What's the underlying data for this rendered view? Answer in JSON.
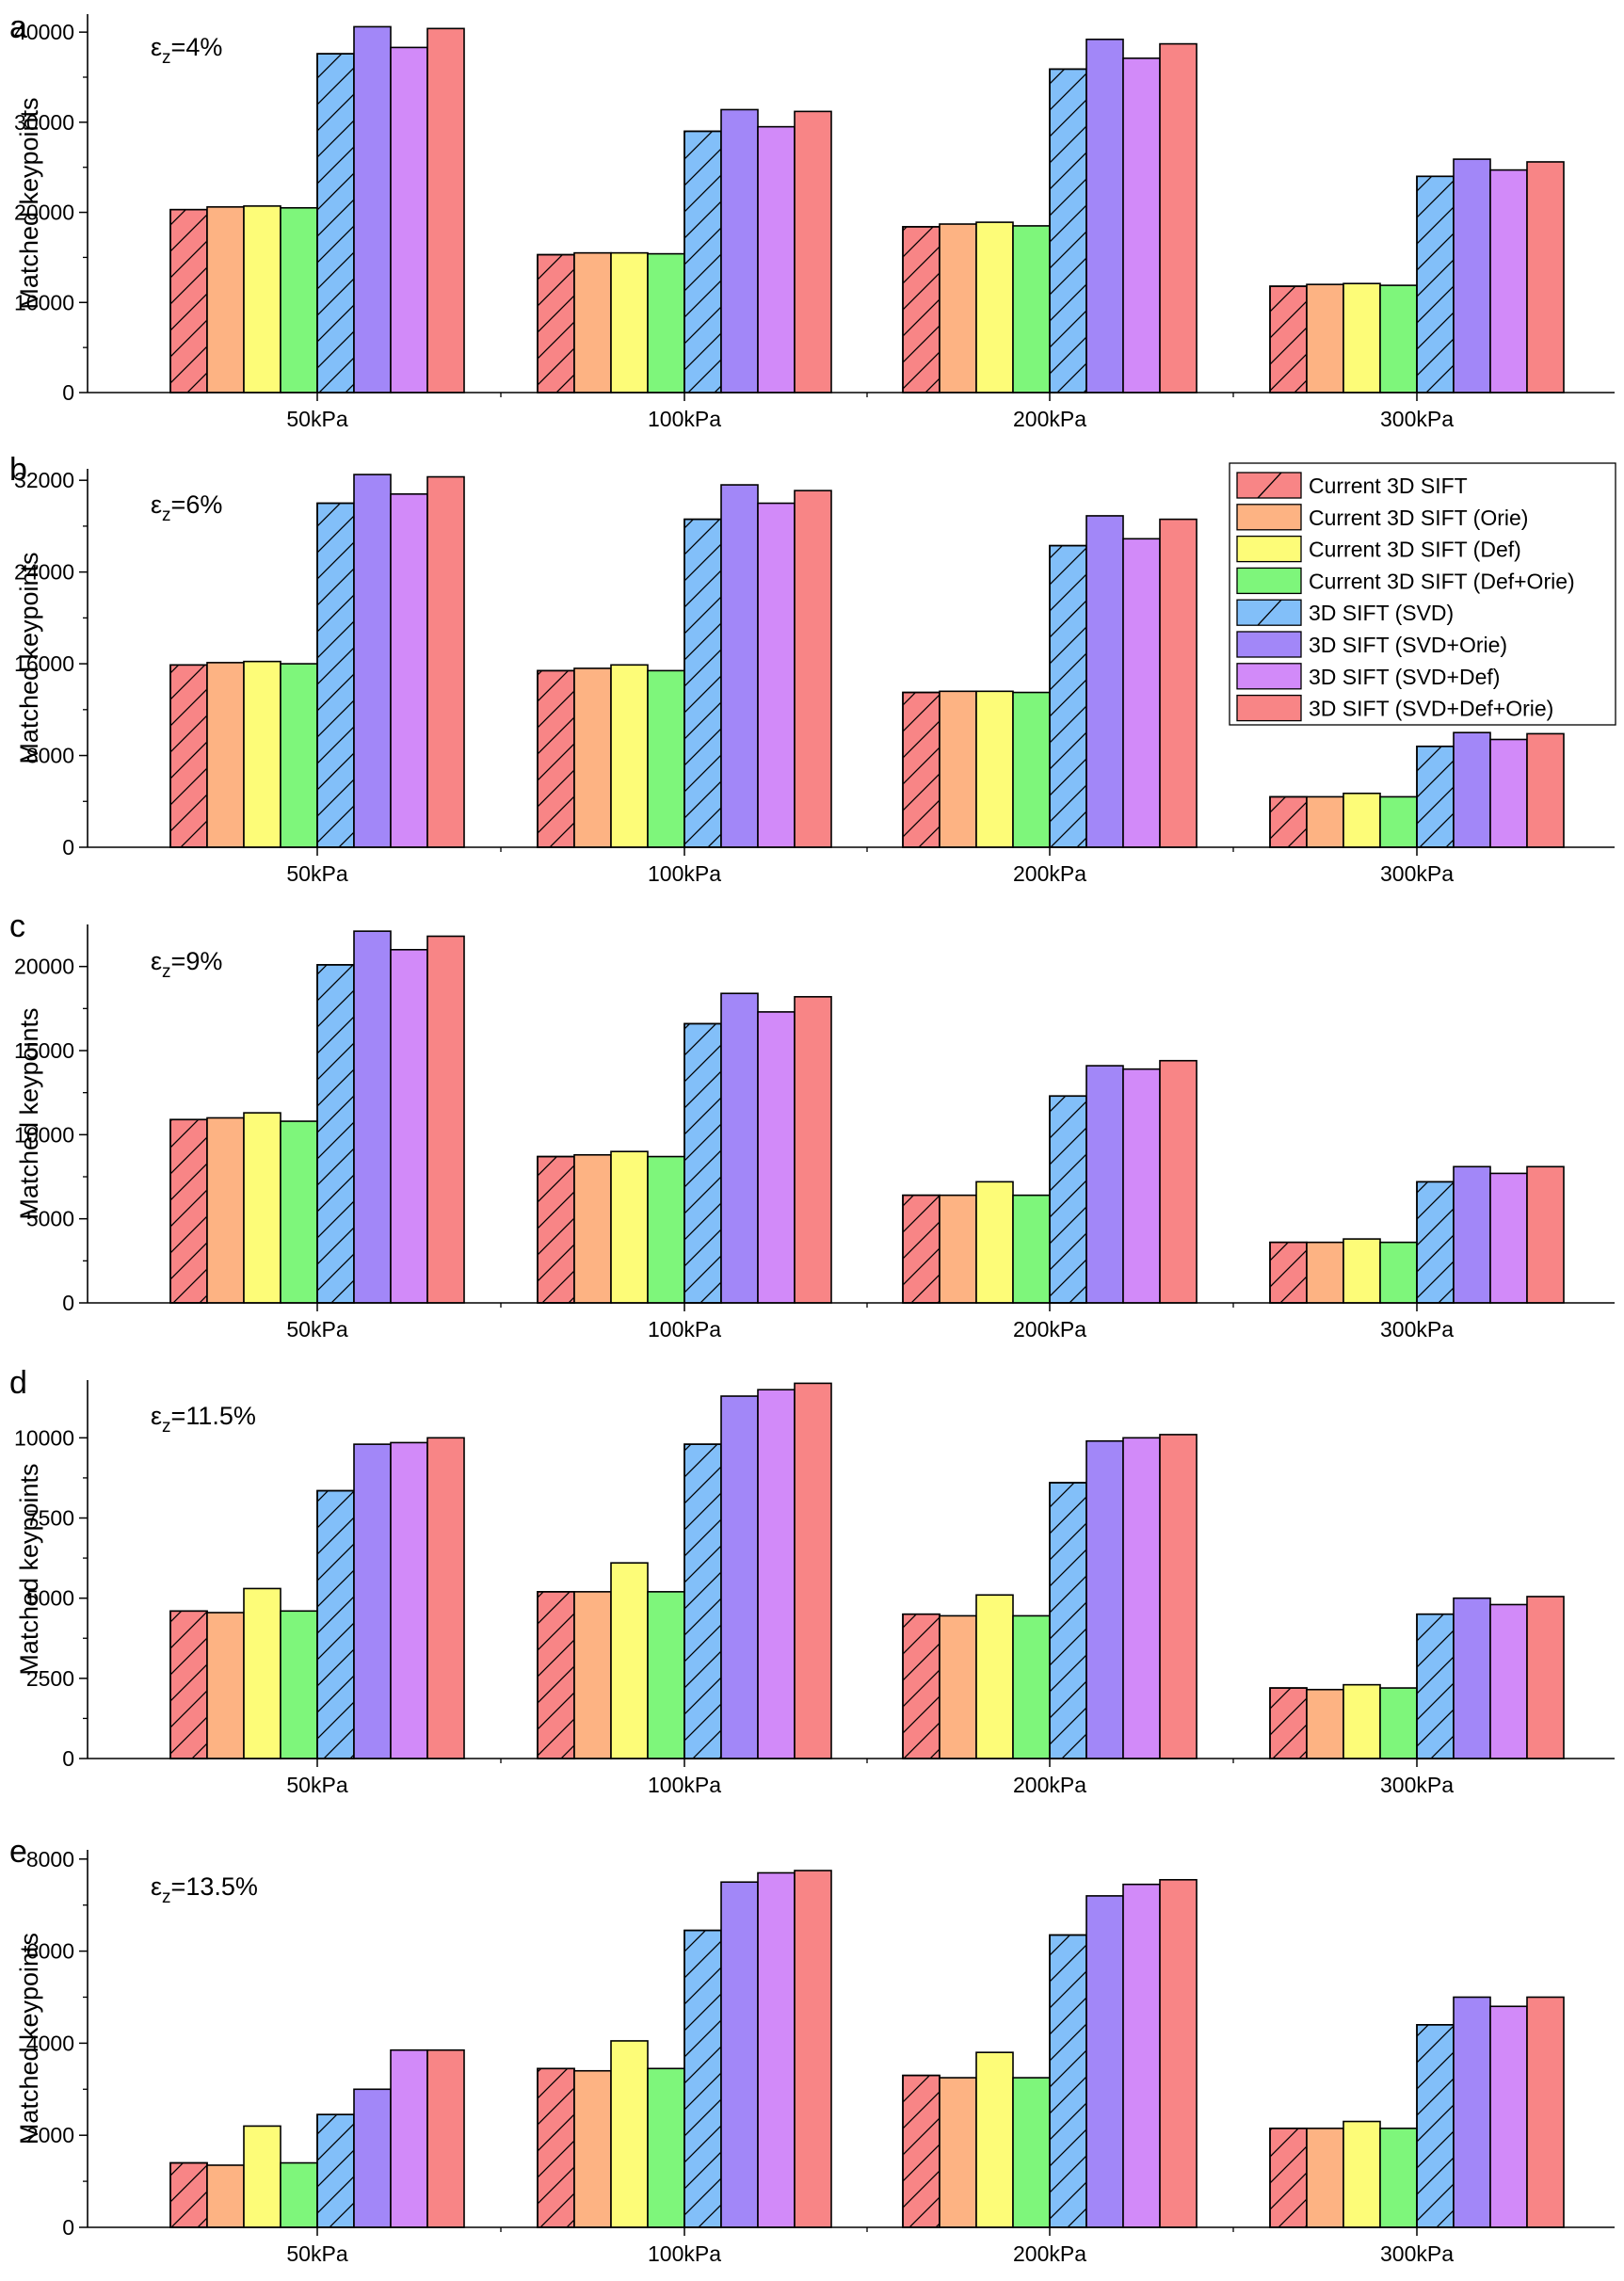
{
  "figure": {
    "series_styles": [
      {
        "name": "Current 3D SIFT",
        "color": "#f88586",
        "hatched": true
      },
      {
        "name": "Current 3D SIFT (Orie)",
        "color": "#fdb383",
        "hatched": false
      },
      {
        "name": "Current 3D SIFT (Def)",
        "color": "#fdfc78",
        "hatched": false
      },
      {
        "name": "Current 3D SIFT (Def+Orie)",
        "color": "#7ef67b",
        "hatched": false
      },
      {
        "name": "3D SIFT (SVD)",
        "color": "#82bff9",
        "hatched": true
      },
      {
        "name": "3D SIFT (SVD+Orie)",
        "color": "#a287f8",
        "hatched": false
      },
      {
        "name": "3D SIFT (SVD+Def)",
        "color": "#d28af9",
        "hatched": false
      },
      {
        "name": "3D SIFT (SVD+Def+Orie)",
        "color": "#f88586",
        "hatched": false
      }
    ],
    "legend_placement": "top-right of panel b"
  },
  "chart_data": [
    {
      "type": "bar",
      "panel_label": "a",
      "annotation": "εz=4%",
      "annotation_main": "ε",
      "annotation_sub": "z",
      "annotation_rest": "=4%",
      "ylabel": "Matched keypoints",
      "xlabel": "",
      "categories": [
        "50kPa",
        "100kPa",
        "200kPa",
        "300kPa"
      ],
      "ylim": [
        0,
        42000
      ],
      "yticks": [
        0,
        10000,
        20000,
        30000,
        40000
      ],
      "ytick_labels": [
        "0",
        "10000",
        "20000",
        "30000",
        "40000"
      ],
      "series": [
        {
          "name": "Current 3D SIFT",
          "values": [
            20300,
            15300,
            18400,
            11800
          ]
        },
        {
          "name": "Current 3D SIFT (Orie)",
          "values": [
            20600,
            15500,
            18700,
            12000
          ]
        },
        {
          "name": "Current 3D SIFT (Def)",
          "values": [
            20700,
            15500,
            18900,
            12100
          ]
        },
        {
          "name": "Current 3D SIFT (Def+Orie)",
          "values": [
            20500,
            15400,
            18500,
            11900
          ]
        },
        {
          "name": "3D SIFT (SVD)",
          "values": [
            37600,
            29000,
            35900,
            24000
          ]
        },
        {
          "name": "3D SIFT (SVD+Orie)",
          "values": [
            40600,
            31400,
            39200,
            25900
          ]
        },
        {
          "name": "3D SIFT (SVD+Def)",
          "values": [
            38300,
            29500,
            37100,
            24700
          ]
        },
        {
          "name": "3D SIFT (SVD+Def+Orie)",
          "values": [
            40400,
            31200,
            38700,
            25600
          ]
        }
      ]
    },
    {
      "type": "bar",
      "panel_label": "b",
      "annotation": "εz=6%",
      "annotation_main": "ε",
      "annotation_sub": "z",
      "annotation_rest": "=6%",
      "ylabel": "Matched keypoints",
      "xlabel": "",
      "categories": [
        "50kPa",
        "100kPa",
        "200kPa",
        "300kPa"
      ],
      "ylim": [
        0,
        33000
      ],
      "yticks": [
        0,
        8000,
        16000,
        24000,
        32000
      ],
      "ytick_labels": [
        "0",
        "8000",
        "16000",
        "24000",
        "32000"
      ],
      "legend": true,
      "series": [
        {
          "name": "Current 3D SIFT",
          "values": [
            15900,
            15400,
            13500,
            4400
          ]
        },
        {
          "name": "Current 3D SIFT (Orie)",
          "values": [
            16100,
            15600,
            13600,
            4400
          ]
        },
        {
          "name": "Current 3D SIFT (Def)",
          "values": [
            16200,
            15900,
            13600,
            4700
          ]
        },
        {
          "name": "Current 3D SIFT (Def+Orie)",
          "values": [
            16000,
            15400,
            13500,
            4400
          ]
        },
        {
          "name": "3D SIFT (SVD)",
          "values": [
            30000,
            28600,
            26300,
            8800
          ]
        },
        {
          "name": "3D SIFT (SVD+Orie)",
          "values": [
            32500,
            31600,
            28900,
            10000
          ]
        },
        {
          "name": "3D SIFT (SVD+Def)",
          "values": [
            30800,
            30000,
            26900,
            9400
          ]
        },
        {
          "name": "3D SIFT (SVD+Def+Orie)",
          "values": [
            32300,
            31100,
            28600,
            9900
          ]
        }
      ],
      "legend_entries": [
        "Current 3D SIFT",
        "Current 3D SIFT (Orie)",
        "Current 3D SIFT (Def)",
        "Current 3D SIFT (Def+Orie)",
        "3D SIFT (SVD)",
        "3D SIFT (SVD+Orie)",
        "3D SIFT (SVD+Def)",
        "3D SIFT (SVD+Def+Orie)"
      ]
    },
    {
      "type": "bar",
      "panel_label": "c",
      "annotation": "εz=9%",
      "annotation_main": "ε",
      "annotation_sub": "z",
      "annotation_rest": "=9%",
      "ylabel": "Matched keypoints",
      "xlabel": "",
      "categories": [
        "50kPa",
        "100kPa",
        "200kPa",
        "300kPa"
      ],
      "ylim": [
        0,
        22500
      ],
      "yticks": [
        0,
        5000,
        10000,
        15000,
        20000
      ],
      "ytick_labels": [
        "0",
        "5000",
        "10000",
        "15000",
        "20000"
      ],
      "series": [
        {
          "name": "Current 3D SIFT",
          "values": [
            10900,
            8700,
            6400,
            3600
          ]
        },
        {
          "name": "Current 3D SIFT (Orie)",
          "values": [
            11000,
            8800,
            6400,
            3600
          ]
        },
        {
          "name": "Current 3D SIFT (Def)",
          "values": [
            11300,
            9000,
            7200,
            3800
          ]
        },
        {
          "name": "Current 3D SIFT (Def+Orie)",
          "values": [
            10800,
            8700,
            6400,
            3600
          ]
        },
        {
          "name": "3D SIFT (SVD)",
          "values": [
            20100,
            16600,
            12300,
            7200
          ]
        },
        {
          "name": "3D SIFT (SVD+Orie)",
          "values": [
            22100,
            18400,
            14100,
            8100
          ]
        },
        {
          "name": "3D SIFT (SVD+Def)",
          "values": [
            21000,
            17300,
            13900,
            7700
          ]
        },
        {
          "name": "3D SIFT (SVD+Def+Orie)",
          "values": [
            21800,
            18200,
            14400,
            8100
          ]
        }
      ]
    },
    {
      "type": "bar",
      "panel_label": "d",
      "annotation": "εz=11.5%",
      "annotation_main": "ε",
      "annotation_sub": "z",
      "annotation_rest": "=11.5%",
      "ylabel": "Matched keypoints",
      "xlabel": "",
      "categories": [
        "50kPa",
        "100kPa",
        "200kPa",
        "300kPa"
      ],
      "ylim": [
        0,
        11800
      ],
      "yticks": [
        0,
        2500,
        5000,
        7500,
        10000
      ],
      "ytick_labels": [
        "0",
        "2500",
        "5000",
        "7500",
        "10000"
      ],
      "series": [
        {
          "name": "Current 3D SIFT",
          "values": [
            4600,
            5200,
            4500,
            2200
          ]
        },
        {
          "name": "Current 3D SIFT (Orie)",
          "values": [
            4550,
            5200,
            4450,
            2150
          ]
        },
        {
          "name": "Current 3D SIFT (Def)",
          "values": [
            5300,
            6100,
            5100,
            2300
          ]
        },
        {
          "name": "Current 3D SIFT (Def+Orie)",
          "values": [
            4600,
            5200,
            4450,
            2200
          ]
        },
        {
          "name": "3D SIFT (SVD)",
          "values": [
            8350,
            9800,
            8600,
            4500
          ]
        },
        {
          "name": "3D SIFT (SVD+Orie)",
          "values": [
            9800,
            11300,
            9900,
            5000
          ]
        },
        {
          "name": "3D SIFT (SVD+Def)",
          "values": [
            9850,
            11500,
            10000,
            4800
          ]
        },
        {
          "name": "3D SIFT (SVD+Def+Orie)",
          "values": [
            10000,
            11700,
            10100,
            5050
          ]
        }
      ]
    },
    {
      "type": "bar",
      "panel_label": "e",
      "annotation": "εz=13.5%",
      "annotation_main": "ε",
      "annotation_sub": "z",
      "annotation_rest": "=13.5%",
      "ylabel": "Matched keypoints",
      "xlabel": "",
      "categories": [
        "50kPa",
        "100kPa",
        "200kPa",
        "300kPa"
      ],
      "ylim": [
        0,
        8200
      ],
      "yticks": [
        0,
        2000,
        4000,
        6000,
        8000
      ],
      "ytick_labels": [
        "0",
        "2000",
        "4000",
        "6000",
        "8000"
      ],
      "series": [
        {
          "name": "Current 3D SIFT",
          "values": [
            1400,
            3450,
            3300,
            2150
          ]
        },
        {
          "name": "Current 3D SIFT (Orie)",
          "values": [
            1350,
            3400,
            3250,
            2150
          ]
        },
        {
          "name": "Current 3D SIFT (Def)",
          "values": [
            2200,
            4050,
            3800,
            2300
          ]
        },
        {
          "name": "Current 3D SIFT (Def+Orie)",
          "values": [
            1400,
            3450,
            3250,
            2150
          ]
        },
        {
          "name": "3D SIFT (SVD)",
          "values": [
            2450,
            6450,
            6350,
            4400
          ]
        },
        {
          "name": "3D SIFT (SVD+Orie)",
          "values": [
            3000,
            7500,
            7200,
            5000
          ]
        },
        {
          "name": "3D SIFT (SVD+Def)",
          "values": [
            3850,
            7700,
            7450,
            4800
          ]
        },
        {
          "name": "3D SIFT (SVD+Def+Orie)",
          "values": [
            3850,
            7750,
            7550,
            5000
          ]
        }
      ]
    }
  ]
}
